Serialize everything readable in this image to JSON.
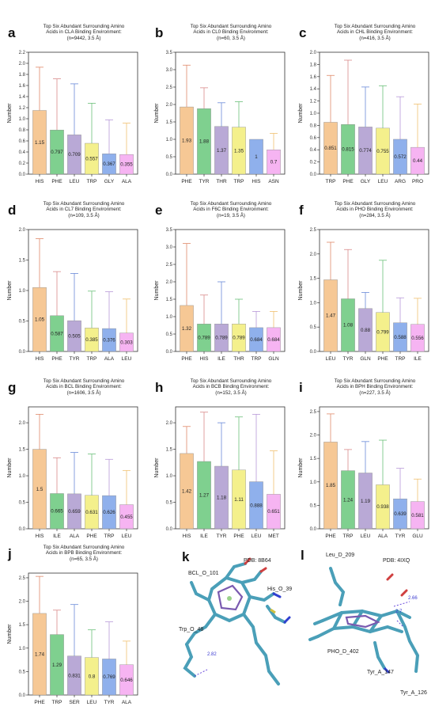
{
  "chart_data": [
    {
      "letter": "a",
      "type": "bar",
      "title": [
        "Top Six Abundant Surrounding Amino",
        "Acids in CLA Binding Environment:",
        "(n=9442, 3.5 Å)"
      ],
      "ylabel": "Number",
      "ylim": [
        0,
        2.2
      ],
      "yticks": [
        "0.0",
        "0.2",
        "0.4",
        "0.6",
        "0.8",
        "1.0",
        "1.2",
        "1.4",
        "1.6",
        "1.8",
        "2.0",
        "2.2"
      ],
      "categories": [
        "HIS",
        "PHE",
        "LEU",
        "TRP",
        "GLY",
        "ALA"
      ],
      "values": [
        1.15,
        0.797,
        0.709,
        0.557,
        0.367,
        0.355
      ],
      "labels": [
        "1.15",
        "0.797",
        "0.709",
        "0.557",
        "0.367",
        "0.355"
      ],
      "errors": [
        1.93,
        1.72,
        1.63,
        1.28,
        0.98,
        0.92
      ],
      "colors": [
        "#f6c895",
        "#7fd08f",
        "#b9a9d6",
        "#f4f08c",
        "#8fb0ec",
        "#f6b4f2"
      ],
      "err_colors": [
        "#e08a6a",
        "#d98a8a",
        "#6a8ad8",
        "#6cc07a",
        "#b89ad8",
        "#f0c070"
      ]
    },
    {
      "letter": "b",
      "type": "bar",
      "title": [
        "Top Six Abundant Surrounding Amino",
        "Acids in CL0 Binding Environment:",
        "(n=60, 3.5 Å)"
      ],
      "ylabel": "Number",
      "ylim": [
        0,
        3.5
      ],
      "yticks": [
        "0.0",
        "0.5",
        "1.0",
        "1.5",
        "2.0",
        "2.5",
        "3.0",
        "3.5"
      ],
      "categories": [
        "PHE",
        "TYR",
        "THR",
        "TRP",
        "HIS",
        "ASN"
      ],
      "values": [
        1.93,
        1.88,
        1.37,
        1.35,
        1,
        0.7
      ],
      "labels": [
        "1.93",
        "1.88",
        "1.37",
        "1.35",
        "1",
        "0.7"
      ],
      "errors": [
        3.13,
        2.48,
        2.05,
        2.08,
        0,
        1.17
      ],
      "colors": [
        "#f6c895",
        "#7fd08f",
        "#b9a9d6",
        "#f4f08c",
        "#8fb0ec",
        "#f6b4f2"
      ],
      "err_colors": [
        "#e08a6a",
        "#d98a8a",
        "#6a8ad8",
        "#6cc07a",
        "#b89ad8",
        "#f0c070"
      ]
    },
    {
      "letter": "c",
      "type": "bar",
      "title": [
        "Top Six Abundant Surrounding Amino",
        "Acids in CHL Binding Environment:",
        "(n=416, 3.5 Å)"
      ],
      "ylabel": "Number",
      "ylim": [
        0,
        2.0
      ],
      "yticks": [
        "0.0",
        "0.2",
        "0.4",
        "0.6",
        "0.8",
        "1.0",
        "1.2",
        "1.4",
        "1.6",
        "1.8",
        "2.0"
      ],
      "categories": [
        "TRP",
        "PHE",
        "GLY",
        "LEU",
        "ARG",
        "PRO"
      ],
      "values": [
        0.851,
        0.815,
        0.774,
        0.755,
        0.572,
        0.44
      ],
      "labels": [
        "0.851",
        "0.815",
        "0.774",
        "0.755",
        "0.572",
        "0.44"
      ],
      "errors": [
        1.62,
        1.87,
        1.43,
        1.45,
        1.27,
        1.15
      ],
      "colors": [
        "#f6c895",
        "#7fd08f",
        "#b9a9d6",
        "#f4f08c",
        "#8fb0ec",
        "#f6b4f2"
      ],
      "err_colors": [
        "#e08a6a",
        "#d98a8a",
        "#6a8ad8",
        "#6cc07a",
        "#b89ad8",
        "#f0c070"
      ]
    },
    {
      "letter": "d",
      "type": "bar",
      "title": [
        "Top Six Abundant Surrounding Amino",
        "Acids in CL7 Binding Environment:",
        "(n=109, 3.5 Å)"
      ],
      "ylabel": "Number",
      "ylim": [
        0,
        2.0
      ],
      "yticks": [
        "0.0",
        "0.5",
        "1.0",
        "1.5",
        "2.0"
      ],
      "categories": [
        "HIS",
        "PHE",
        "TYR",
        "TRP",
        "ALA",
        "LEU"
      ],
      "values": [
        1.05,
        0.587,
        0.505,
        0.385,
        0.376,
        0.303
      ],
      "labels": [
        "1.05",
        "0.587",
        "0.505",
        "0.385",
        "0.376",
        "0.303"
      ],
      "errors": [
        1.85,
        1.31,
        1.28,
        0.99,
        0.98,
        0.86
      ],
      "colors": [
        "#f6c895",
        "#7fd08f",
        "#b9a9d6",
        "#f4f08c",
        "#8fb0ec",
        "#f6b4f2"
      ],
      "err_colors": [
        "#e08a6a",
        "#d98a8a",
        "#6a8ad8",
        "#6cc07a",
        "#b89ad8",
        "#f0c070"
      ]
    },
    {
      "letter": "e",
      "type": "bar",
      "title": [
        "Top Six Abundant Surrounding Amino",
        "Acids in F6C Binding Environment:",
        "(n=19, 3.5 Å)"
      ],
      "ylabel": "Number",
      "ylim": [
        0,
        3.5
      ],
      "yticks": [
        "0.0",
        "0.5",
        "1.0",
        "1.5",
        "2.0",
        "2.5",
        "3.0",
        "3.5"
      ],
      "categories": [
        "PHE",
        "HIS",
        "ILE",
        "THR",
        "TRP",
        "GLN"
      ],
      "values": [
        1.32,
        0.789,
        0.789,
        0.789,
        0.684,
        0.684
      ],
      "labels": [
        "1.32",
        "0.789",
        "0.789",
        "0.789",
        "0.684",
        "0.684"
      ],
      "errors": [
        3.1,
        1.62,
        2.0,
        1.5,
        1.15,
        1.15
      ],
      "colors": [
        "#f6c895",
        "#7fd08f",
        "#b9a9d6",
        "#f4f08c",
        "#8fb0ec",
        "#f6b4f2"
      ],
      "err_colors": [
        "#e08a6a",
        "#d98a8a",
        "#6a8ad8",
        "#6cc07a",
        "#b89ad8",
        "#f0c070"
      ]
    },
    {
      "letter": "f",
      "type": "bar",
      "title": [
        "Top Six Abundant Surrounding Amino",
        "Acids in PHO Binding Environment:",
        "(n=284, 3.5 Å)"
      ],
      "ylabel": "Number",
      "ylim": [
        0,
        2.5
      ],
      "yticks": [
        "0.0",
        "0.5",
        "1.0",
        "1.5",
        "2.0",
        "2.5"
      ],
      "categories": [
        "LEU",
        "TYR",
        "GLN",
        "PHE",
        "TRP",
        "ILE"
      ],
      "values": [
        1.47,
        1.08,
        0.88,
        0.799,
        0.588,
        0.556
      ],
      "labels": [
        "1.47",
        "1.08",
        "0.88",
        "0.799",
        "0.588",
        "0.556"
      ],
      "errors": [
        2.24,
        2.09,
        1.21,
        1.87,
        1.1,
        1.09
      ],
      "colors": [
        "#f6c895",
        "#7fd08f",
        "#b9a9d6",
        "#f4f08c",
        "#8fb0ec",
        "#f6b4f2"
      ],
      "err_colors": [
        "#e08a6a",
        "#d98a8a",
        "#6a8ad8",
        "#6cc07a",
        "#b89ad8",
        "#f0c070"
      ]
    },
    {
      "letter": "g",
      "type": "bar",
      "title": [
        "Top Six Abundant Surrounding Amino",
        "Acids in BCL Binding Environment:",
        "(n=1606, 3.5 Å)"
      ],
      "ylabel": "Number",
      "ylim": [
        0,
        2.3
      ],
      "yticks": [
        "0.0",
        "0.5",
        "1.0",
        "1.5",
        "2.0"
      ],
      "categories": [
        "HIS",
        "ILE",
        "ALA",
        "PHE",
        "TRP",
        "LEU"
      ],
      "values": [
        1.5,
        0.665,
        0.659,
        0.631,
        0.626,
        0.455
      ],
      "labels": [
        "1.5",
        "0.665",
        "0.659",
        "0.631",
        "0.626",
        "0.455"
      ],
      "errors": [
        2.16,
        1.34,
        1.44,
        1.41,
        1.31,
        1.1
      ],
      "colors": [
        "#f6c895",
        "#7fd08f",
        "#b9a9d6",
        "#f4f08c",
        "#8fb0ec",
        "#f6b4f2"
      ],
      "err_colors": [
        "#e08a6a",
        "#d98a8a",
        "#6a8ad8",
        "#6cc07a",
        "#b89ad8",
        "#f0c070"
      ]
    },
    {
      "letter": "h",
      "type": "bar",
      "title": [
        "Top Six Abundant Surrounding Amino",
        "Acids in BCB Binding Environment:",
        "(n=152, 3.5 Å)"
      ],
      "ylabel": "Number",
      "ylim": [
        0,
        2.3
      ],
      "yticks": [
        "0.0",
        "0.5",
        "1.0",
        "1.5",
        "2.0"
      ],
      "categories": [
        "HIS",
        "ILE",
        "TYR",
        "PHE",
        "LEU",
        "MET"
      ],
      "values": [
        1.42,
        1.27,
        1.18,
        1.11,
        0.888,
        0.651
      ],
      "labels": [
        "1.42",
        "1.27",
        "1.18",
        "1.11",
        "0.888",
        "0.651"
      ],
      "errors": [
        1.93,
        2.2,
        2.0,
        2.11,
        2.16,
        1.47
      ],
      "colors": [
        "#f6c895",
        "#7fd08f",
        "#b9a9d6",
        "#f4f08c",
        "#8fb0ec",
        "#f6b4f2"
      ],
      "err_colors": [
        "#e08a6a",
        "#d98a8a",
        "#6a8ad8",
        "#6cc07a",
        "#b89ad8",
        "#f0c070"
      ]
    },
    {
      "letter": "i",
      "type": "bar",
      "title": [
        "Top Six Abundant Surrounding Amino",
        "Acids in BPH Binding Environment:",
        "(n=227, 3.5 Å)"
      ],
      "ylabel": "Number",
      "ylim": [
        0,
        2.6
      ],
      "yticks": [
        "0.0",
        "0.5",
        "1.0",
        "1.5",
        "2.0",
        "2.5"
      ],
      "categories": [
        "PHE",
        "TRP",
        "LEU",
        "ALA",
        "TYR",
        "GLU"
      ],
      "values": [
        1.85,
        1.24,
        1.19,
        0.938,
        0.639,
        0.581
      ],
      "labels": [
        "1.85",
        "1.24",
        "1.19",
        "0.938",
        "0.639",
        "0.581"
      ],
      "errors": [
        2.45,
        1.69,
        1.86,
        1.89,
        1.29,
        1.06
      ],
      "colors": [
        "#f6c895",
        "#7fd08f",
        "#b9a9d6",
        "#f4f08c",
        "#8fb0ec",
        "#f6b4f2"
      ],
      "err_colors": [
        "#e08a6a",
        "#d98a8a",
        "#6a8ad8",
        "#6cc07a",
        "#b89ad8",
        "#f0c070"
      ]
    },
    {
      "letter": "j",
      "type": "bar",
      "title": [
        "Top Six Abundant Surrounding Amino",
        "Acids in BPB Binding Environment:",
        "(n=65, 3.5 Å)"
      ],
      "ylabel": "Number",
      "ylim": [
        0,
        2.6
      ],
      "yticks": [
        "0.0",
        "0.5",
        "1.0",
        "1.5",
        "2.0",
        "2.5"
      ],
      "categories": [
        "PHE",
        "TRP",
        "SER",
        "LEU",
        "TYR",
        "ALA"
      ],
      "values": [
        1.74,
        1.29,
        0.831,
        0.8,
        0.769,
        0.646
      ],
      "labels": [
        "1.74",
        "1.29",
        "0.831",
        "0.8",
        "0.769",
        "0.646"
      ],
      "errors": [
        2.53,
        1.81,
        1.93,
        1.39,
        1.56,
        1.15
      ],
      "colors": [
        "#f6c895",
        "#7fd08f",
        "#b9a9d6",
        "#f4f08c",
        "#8fb0ec",
        "#f6b4f2"
      ],
      "err_colors": [
        "#e08a6a",
        "#d98a8a",
        "#6a8ad8",
        "#6cc07a",
        "#b89ad8",
        "#f0c070"
      ]
    }
  ],
  "structures": {
    "k": {
      "letter": "k",
      "pdb": "PDB: 8B64",
      "residues": [
        "BCL_O_101",
        "His_O_39",
        "Trp_O_48"
      ],
      "distances": [
        "2.82"
      ]
    },
    "l": {
      "letter": "l",
      "pdb": "PDB: 4IXQ",
      "residues": [
        "Leu_D_209",
        "PHO_D_402",
        "Tyr_A_147",
        "Tyr_A_126"
      ],
      "distances": [
        "2.66",
        "2.7"
      ]
    }
  }
}
